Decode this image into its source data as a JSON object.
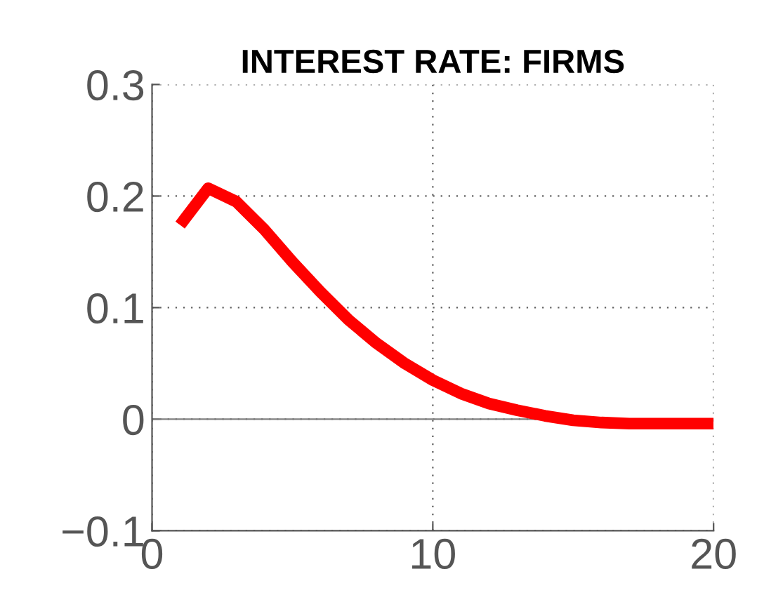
{
  "chart_data": {
    "type": "line",
    "title": "INTEREST RATE: FIRMS",
    "x": [
      1,
      2,
      3,
      4,
      5,
      6,
      7,
      8,
      9,
      10,
      11,
      12,
      13,
      14,
      15,
      16,
      17,
      18,
      19,
      20
    ],
    "series": [
      {
        "color": "#ff0000",
        "values": [
          0.174,
          0.207,
          0.195,
          0.17,
          0.141,
          0.114,
          0.089,
          0.068,
          0.05,
          0.035,
          0.023,
          0.014,
          0.008,
          0.003,
          -0.001,
          -0.003,
          -0.004,
          -0.004,
          -0.004,
          -0.004
        ]
      }
    ],
    "xlim": [
      0,
      20
    ],
    "xticks": [
      0,
      10,
      20
    ],
    "ylim": [
      -0.1,
      0.3
    ],
    "yticks": [
      -0.1,
      0,
      0.1,
      0.2,
      0.3
    ],
    "grid": true,
    "ref_lines": [
      {
        "axis": "y",
        "value": 0,
        "color": "#808080"
      }
    ]
  }
}
